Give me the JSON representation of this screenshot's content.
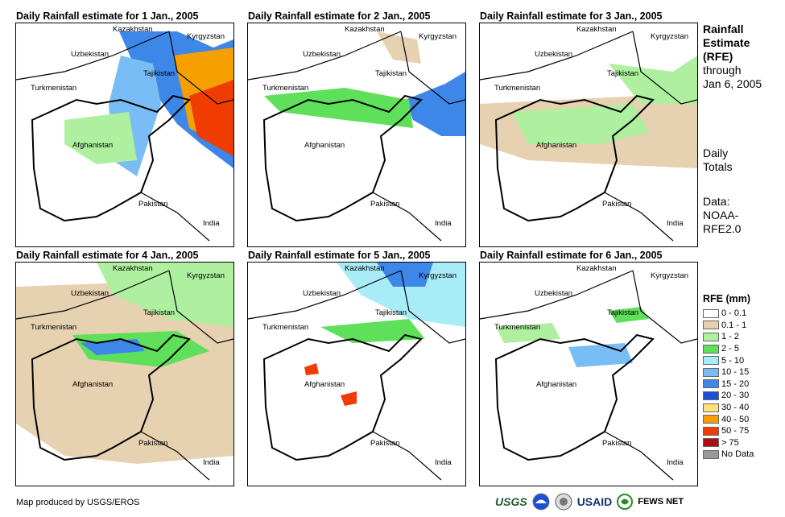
{
  "panels": [
    {
      "title": "Daily Rainfall estimate for 1 Jan., 2005"
    },
    {
      "title": "Daily Rainfall estimate for 2 Jan., 2005"
    },
    {
      "title": "Daily Rainfall estimate for 3 Jan., 2005"
    },
    {
      "title": "Daily Rainfall estimate for 4 Jan., 2005"
    },
    {
      "title": "Daily Rainfall estimate for 5 Jan., 2005"
    },
    {
      "title": "Daily Rainfall estimate for 6 Jan., 2005"
    }
  ],
  "places": {
    "kazakhstan": "Kazakhstan",
    "kyrgyzstan": "Kyrgyzstan",
    "uzbekistan": "Uzbekistan",
    "tajikistan": "Tajikistan",
    "turkmenistan": "Turkmenistan",
    "afghanistan": "Afghanistan",
    "pakistan": "Pakistan",
    "india": "India"
  },
  "sidebar": {
    "heading1": "Rainfall",
    "heading2": "Estimate",
    "heading3": "(RFE)",
    "through1": "through",
    "through2": "Jan 6, 2005",
    "daily1": "Daily",
    "daily2": "Totals",
    "data1": "Data:",
    "data2": "NOAA-",
    "data3": "RFE2.0"
  },
  "legend": {
    "title": "RFE (mm)",
    "items": [
      {
        "label": "0 - 0.1",
        "color": "#ffffff"
      },
      {
        "label": "0.1 - 1",
        "color": "#e6d2b0"
      },
      {
        "label": "1 - 2",
        "color": "#aef0a0"
      },
      {
        "label": "2 - 5",
        "color": "#5fe05a"
      },
      {
        "label": "5 - 10",
        "color": "#a8ecf8"
      },
      {
        "label": "10 - 15",
        "color": "#78bdf5"
      },
      {
        "label": "15 - 20",
        "color": "#3d87e8"
      },
      {
        "label": "20 - 30",
        "color": "#1a4fd8"
      },
      {
        "label": "30 - 40",
        "color": "#fde07a"
      },
      {
        "label": "40 - 50",
        "color": "#f5a000"
      },
      {
        "label": "50 - 75",
        "color": "#f03c00"
      },
      {
        "label": "> 75",
        "color": "#b01010"
      },
      {
        "label": "No Data",
        "color": "#999999"
      }
    ]
  },
  "footer": {
    "credit": "Map produced by USGS/EROS",
    "logo_usgs": "USGS",
    "logo_usaid": "USAID",
    "logo_fews": "FEWS NET"
  }
}
